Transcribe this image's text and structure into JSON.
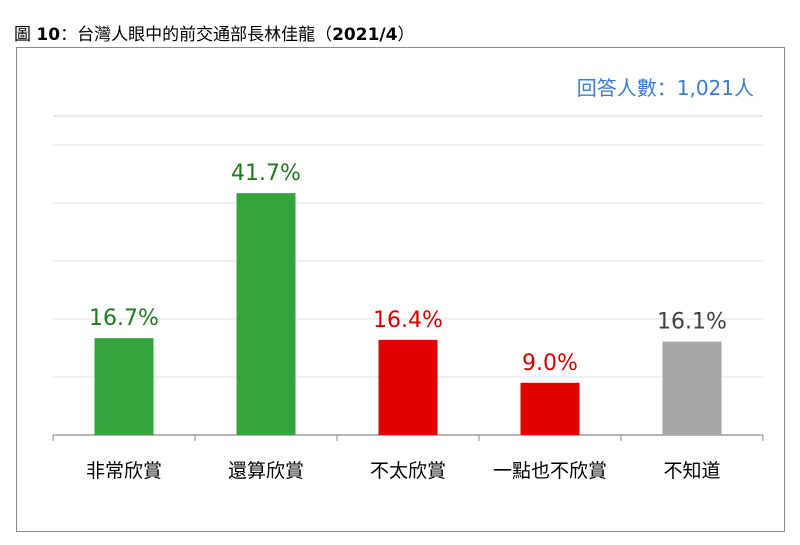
{
  "figure": {
    "prefix": "圖",
    "number": "10",
    "colon": "：",
    "text": "台灣人眼中的前交通部長林佳龍（",
    "date": "2021/4",
    "close": "）"
  },
  "respondents": "回答人數：1,021人",
  "colors": {
    "green": "#34a33c",
    "red": "#e00000",
    "gray": "#a6a6a6",
    "green_text": "#1f7a1f",
    "red_text": "#d40000",
    "gray_text": "#404040",
    "blue": "#3b7bd6"
  },
  "chart_data": {
    "type": "bar",
    "categories": [
      "非常欣賞",
      "還算欣賞",
      "不太欣賞",
      "一點也不欣賞",
      "不知道"
    ],
    "values": [
      16.7,
      41.7,
      16.4,
      9.0,
      16.1
    ],
    "value_labels": [
      "16.7%",
      "41.7%",
      "16.4%",
      "9.0%",
      "16.1%"
    ],
    "bar_colors": [
      "#34a33c",
      "#34a33c",
      "#e00000",
      "#e00000",
      "#a6a6a6"
    ],
    "label_colors": [
      "#1f7a1f",
      "#1f7a1f",
      "#d40000",
      "#d40000",
      "#404040"
    ],
    "ylim": [
      0,
      55
    ],
    "grid": true,
    "legend": "none",
    "xlabel": "",
    "ylabel": ""
  }
}
